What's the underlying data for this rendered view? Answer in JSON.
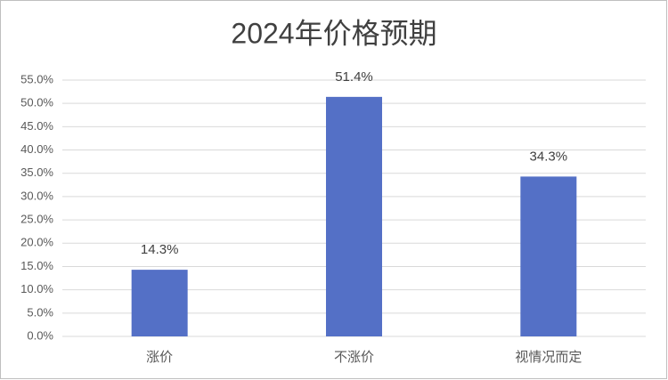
{
  "chart_data": {
    "type": "bar",
    "title": "2024年价格预期",
    "categories": [
      "涨价",
      "不涨价",
      "视情况而定"
    ],
    "values": [
      14.3,
      51.4,
      34.3
    ],
    "value_labels": [
      "14.3%",
      "51.4%",
      "34.3%"
    ],
    "color": "#5470c6",
    "ylim": [
      0,
      55
    ],
    "yticks": [
      {
        "value": 0,
        "label": "0.0%"
      },
      {
        "value": 5,
        "label": "5.0%"
      },
      {
        "value": 10,
        "label": "10.0%"
      },
      {
        "value": 15,
        "label": "15.0%"
      },
      {
        "value": 20,
        "label": "20.0%"
      },
      {
        "value": 25,
        "label": "25.0%"
      },
      {
        "value": 30,
        "label": "30.0%"
      },
      {
        "value": 35,
        "label": "35.0%"
      },
      {
        "value": 40,
        "label": "40.0%"
      },
      {
        "value": 45,
        "label": "45.0%"
      },
      {
        "value": 50,
        "label": "50.0%"
      },
      {
        "value": 55,
        "label": "55.0%"
      }
    ],
    "grid": true
  }
}
